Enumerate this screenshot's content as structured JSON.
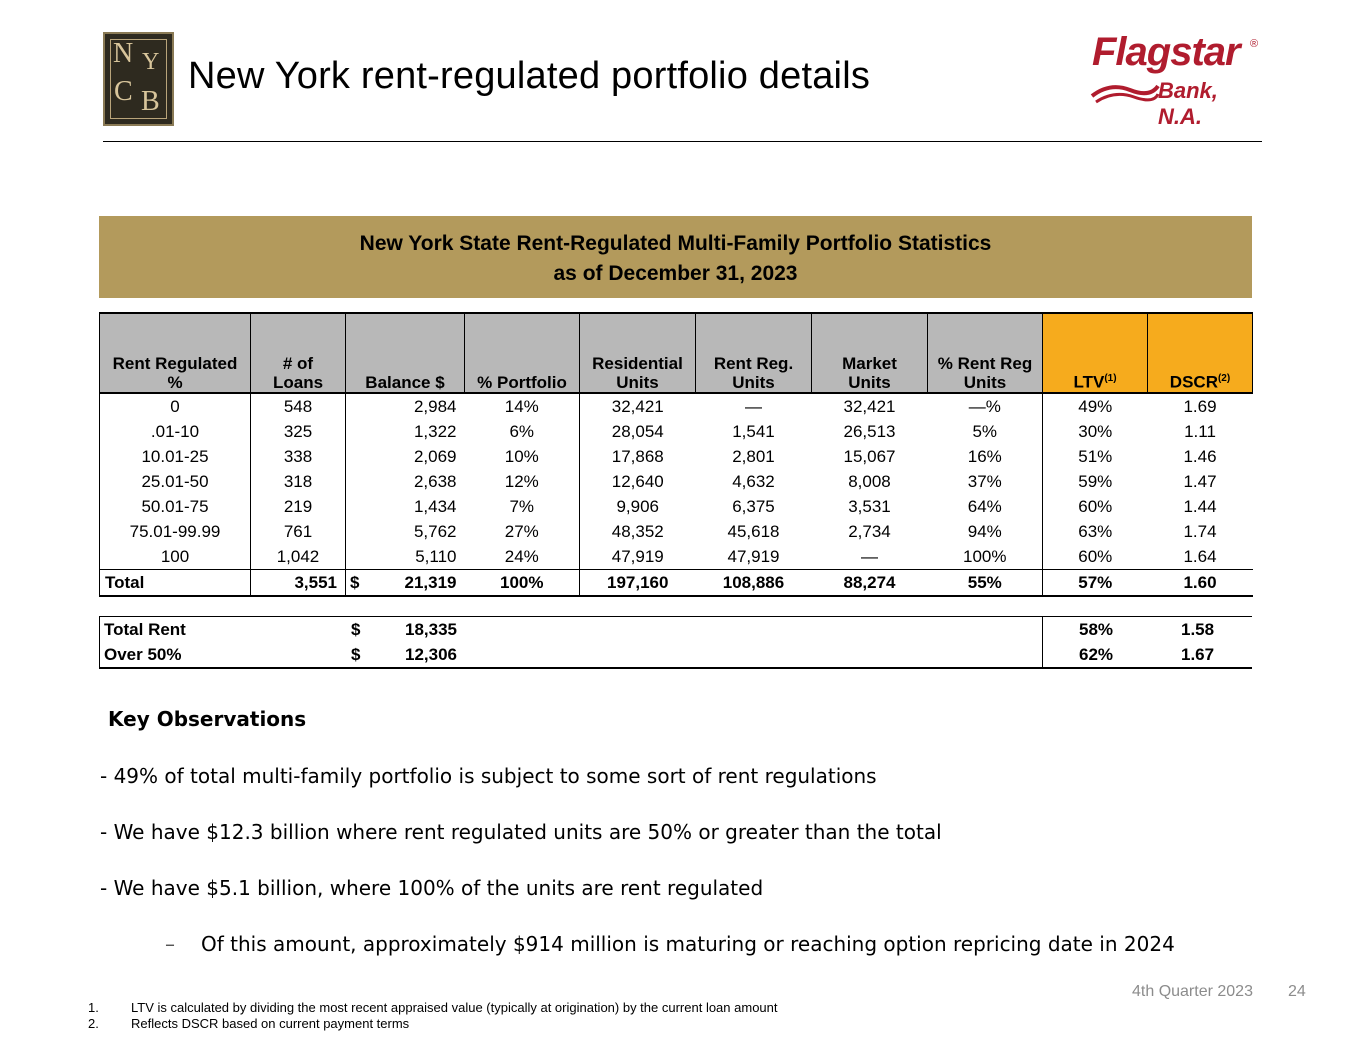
{
  "header": {
    "title": "New York rent-regulated portfolio details",
    "logo_left": {
      "letters": [
        "N",
        "Y",
        "C",
        "B"
      ]
    },
    "logo_right": {
      "name": "Flagstar",
      "sub": "Bank, N.A.",
      "reg": "®"
    }
  },
  "banner": {
    "line1": "New York State Rent-Regulated Multi-Family Portfolio Statistics",
    "line2": "as of December 31, 2023"
  },
  "table": {
    "columns": [
      {
        "l1": "Rent Regulated",
        "l2": "%"
      },
      {
        "l1": "# of",
        "l2": "Loans"
      },
      {
        "l1": "",
        "l2": "Balance $"
      },
      {
        "l1": "",
        "l2": "% Portfolio"
      },
      {
        "l1": "Residential",
        "l2": "Units"
      },
      {
        "l1": "Rent Reg.",
        "l2": "Units"
      },
      {
        "l1": "Market",
        "l2": "Units"
      },
      {
        "l1": "% Rent Reg",
        "l2": "Units"
      },
      {
        "l1": "",
        "l2": "LTV",
        "sup": "(1)"
      },
      {
        "l1": "",
        "l2": "DSCR",
        "sup": "(2)"
      }
    ],
    "rows": [
      [
        "0",
        "548",
        "2,984",
        "14%",
        "32,421",
        "—",
        "32,421",
        "—%",
        "49%",
        "1.69"
      ],
      [
        ".01-10",
        "325",
        "1,322",
        "6%",
        "28,054",
        "1,541",
        "26,513",
        "5%",
        "30%",
        "1.11"
      ],
      [
        "10.01-25",
        "338",
        "2,069",
        "10%",
        "17,868",
        "2,801",
        "15,067",
        "16%",
        "51%",
        "1.46"
      ],
      [
        "25.01-50",
        "318",
        "2,638",
        "12%",
        "12,640",
        "4,632",
        "8,008",
        "37%",
        "59%",
        "1.47"
      ],
      [
        "50.01-75",
        "219",
        "1,434",
        "7%",
        "9,906",
        "6,375",
        "3,531",
        "64%",
        "60%",
        "1.44"
      ],
      [
        "75.01-99.99",
        "761",
        "5,762",
        "27%",
        "48,352",
        "45,618",
        "2,734",
        "94%",
        "63%",
        "1.74"
      ],
      [
        "100",
        "1,042",
        "5,110",
        "24%",
        "47,919",
        "47,919",
        "—",
        "100%",
        "60%",
        "1.64"
      ]
    ],
    "total": [
      "Total",
      "3,551",
      "$",
      "21,319",
      "100%",
      "197,160",
      "108,886",
      "88,274",
      "55%",
      "57%",
      "1.60"
    ]
  },
  "summary": {
    "line1": {
      "label": "Total Rent",
      "dollar": "$",
      "value": "18,335",
      "ltv": "58%",
      "dscr": "1.58"
    },
    "line2": {
      "label": "Over 50%",
      "dollar": "$",
      "value": "12,306",
      "ltv": "62%",
      "dscr": "1.67"
    }
  },
  "observations": {
    "heading": "Key Observations",
    "items": [
      "-  49% of total multi-family portfolio is subject to some sort of rent regulations",
      "-  We have $12.3 billion where rent regulated units are 50% or greater than the total",
      "-  We have $5.1 billion, where 100% of the units are rent regulated"
    ],
    "sub_dash": "–",
    "sub_item": "Of this amount, approximately $914 million is maturing or reaching option repricing date in 2024"
  },
  "footer": {
    "quarter": "4th Quarter 2023",
    "page": "24",
    "notes": [
      {
        "num": "1.",
        "text": "LTV is calculated by dividing the most recent appraised value (typically at origination) by the current loan amount"
      },
      {
        "num": "2.",
        "text": "Reflects DSCR based on current payment terms"
      }
    ]
  }
}
